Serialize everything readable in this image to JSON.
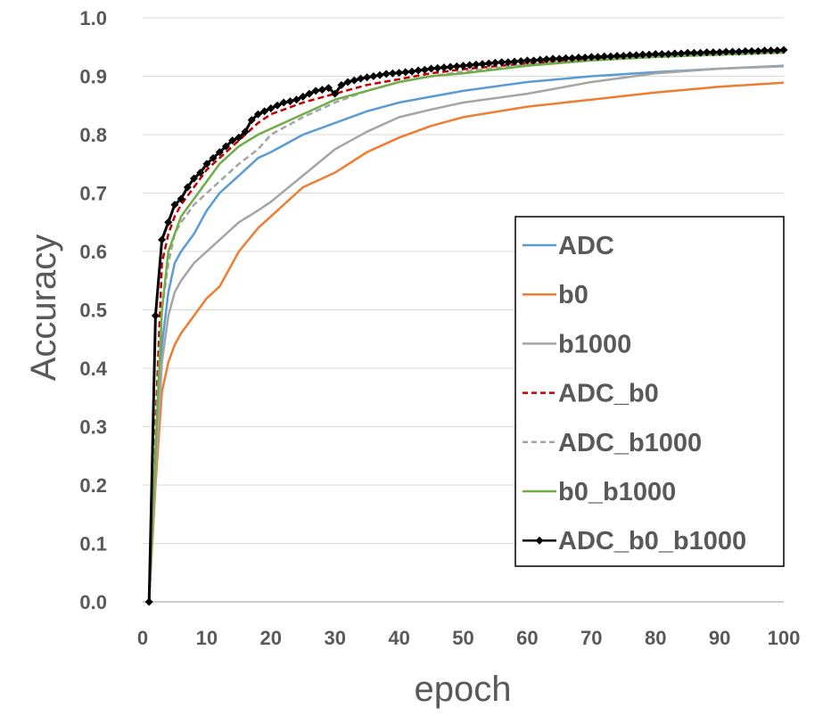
{
  "chart_data": {
    "type": "line",
    "title": "",
    "xlabel": "epoch",
    "ylabel": "Accuracy",
    "xlim": [
      0,
      100
    ],
    "ylim": [
      0.0,
      1.0
    ],
    "x_ticks": [
      "0",
      "10",
      "20",
      "30",
      "40",
      "50",
      "60",
      "70",
      "80",
      "90",
      "100"
    ],
    "y_ticks": [
      "0.0",
      "0.1",
      "0.2",
      "0.3",
      "0.4",
      "0.5",
      "0.6",
      "0.7",
      "0.8",
      "0.9",
      "1.0"
    ],
    "grid": "horizontal",
    "legend_position": "right",
    "series": [
      {
        "name": "ADC",
        "color": "#5b9bd5",
        "dash": "solid",
        "marker": "none",
        "x": [
          2,
          3,
          4,
          5,
          6,
          8,
          10,
          12,
          15,
          18,
          20,
          25,
          30,
          35,
          40,
          45,
          50,
          60,
          70,
          80,
          90,
          100
        ],
        "y": [
          0.25,
          0.44,
          0.53,
          0.58,
          0.6,
          0.63,
          0.67,
          0.7,
          0.73,
          0.76,
          0.77,
          0.8,
          0.82,
          0.84,
          0.855,
          0.865,
          0.875,
          0.89,
          0.9,
          0.907,
          0.913,
          0.918
        ]
      },
      {
        "name": "b0",
        "color": "#ed7d31",
        "dash": "solid",
        "marker": "none",
        "x": [
          2,
          3,
          4,
          5,
          6,
          8,
          10,
          12,
          15,
          18,
          20,
          25,
          30,
          35,
          40,
          45,
          50,
          60,
          70,
          80,
          90,
          100
        ],
        "y": [
          0.2,
          0.36,
          0.41,
          0.44,
          0.46,
          0.49,
          0.52,
          0.54,
          0.6,
          0.64,
          0.66,
          0.71,
          0.735,
          0.77,
          0.795,
          0.815,
          0.83,
          0.848,
          0.86,
          0.872,
          0.882,
          0.889
        ]
      },
      {
        "name": "b1000",
        "color": "#a5a5a5",
        "dash": "solid",
        "marker": "none",
        "x": [
          2,
          3,
          4,
          5,
          6,
          8,
          10,
          12,
          15,
          18,
          20,
          25,
          30,
          35,
          40,
          45,
          50,
          60,
          70,
          80,
          90,
          100
        ],
        "y": [
          0.22,
          0.41,
          0.49,
          0.53,
          0.55,
          0.58,
          0.6,
          0.62,
          0.65,
          0.67,
          0.685,
          0.73,
          0.775,
          0.805,
          0.83,
          0.843,
          0.855,
          0.87,
          0.89,
          0.905,
          0.913,
          0.917
        ]
      },
      {
        "name": "ADC_b0",
        "color": "#c00000",
        "dash": "dashed",
        "marker": "none",
        "x": [
          2,
          3,
          4,
          5,
          6,
          8,
          10,
          12,
          15,
          18,
          20,
          25,
          30,
          35,
          40,
          45,
          50,
          60,
          70,
          80,
          90,
          100
        ],
        "y": [
          0.3,
          0.58,
          0.63,
          0.66,
          0.68,
          0.71,
          0.74,
          0.76,
          0.79,
          0.82,
          0.835,
          0.855,
          0.87,
          0.885,
          0.895,
          0.905,
          0.912,
          0.922,
          0.93,
          0.935,
          0.939,
          0.942
        ]
      },
      {
        "name": "ADC_b1000",
        "color": "#a5a5a5",
        "dash": "dashed",
        "marker": "none",
        "x": [
          2,
          3,
          4,
          5,
          6,
          8,
          10,
          12,
          15,
          18,
          20,
          25,
          30,
          35,
          40,
          45,
          50,
          60,
          70,
          80,
          90,
          100
        ],
        "y": [
          0.28,
          0.5,
          0.58,
          0.63,
          0.65,
          0.68,
          0.7,
          0.72,
          0.75,
          0.775,
          0.8,
          0.83,
          0.855,
          0.875,
          0.89,
          0.9,
          0.908,
          0.92,
          0.928,
          0.933,
          0.937,
          0.94
        ]
      },
      {
        "name": "b0_b1000",
        "color": "#70ad47",
        "dash": "solid",
        "marker": "none",
        "x": [
          2,
          3,
          4,
          5,
          6,
          8,
          10,
          12,
          15,
          18,
          20,
          25,
          30,
          35,
          40,
          45,
          50,
          60,
          70,
          80,
          90,
          100
        ],
        "y": [
          0.26,
          0.5,
          0.6,
          0.63,
          0.66,
          0.69,
          0.72,
          0.75,
          0.78,
          0.8,
          0.81,
          0.835,
          0.86,
          0.875,
          0.89,
          0.9,
          0.905,
          0.918,
          0.927,
          0.933,
          0.937,
          0.941
        ]
      },
      {
        "name": "ADC_b0_b1000",
        "color": "#000000",
        "dash": "solid",
        "marker": "diamond",
        "x": [
          1,
          2,
          3,
          4,
          5,
          6,
          7,
          8,
          9,
          10,
          11,
          12,
          13,
          14,
          15,
          16,
          17,
          18,
          19,
          20,
          21,
          22,
          23,
          24,
          25,
          26,
          27,
          28,
          29,
          30,
          31,
          32,
          33,
          34,
          35,
          36,
          37,
          38,
          39,
          40,
          41,
          42,
          43,
          44,
          45,
          46,
          47,
          48,
          49,
          50,
          51,
          52,
          53,
          54,
          55,
          56,
          57,
          58,
          59,
          60,
          61,
          62,
          63,
          64,
          65,
          66,
          67,
          68,
          69,
          70,
          71,
          72,
          73,
          74,
          75,
          76,
          77,
          78,
          79,
          80,
          81,
          82,
          83,
          84,
          85,
          86,
          87,
          88,
          89,
          90,
          91,
          92,
          93,
          94,
          95,
          96,
          97,
          98,
          99,
          100
        ],
        "y": [
          0.0,
          0.49,
          0.62,
          0.65,
          0.68,
          0.69,
          0.71,
          0.725,
          0.735,
          0.75,
          0.76,
          0.77,
          0.78,
          0.79,
          0.795,
          0.805,
          0.825,
          0.835,
          0.84,
          0.845,
          0.85,
          0.855,
          0.857,
          0.86,
          0.865,
          0.87,
          0.875,
          0.877,
          0.88,
          0.87,
          0.885,
          0.89,
          0.893,
          0.896,
          0.898,
          0.9,
          0.902,
          0.904,
          0.905,
          0.906,
          0.907,
          0.908,
          0.91,
          0.911,
          0.913,
          0.914,
          0.915,
          0.916,
          0.917,
          0.918,
          0.919,
          0.92,
          0.921,
          0.922,
          0.923,
          0.924,
          0.924,
          0.925,
          0.926,
          0.927,
          0.927,
          0.928,
          0.929,
          0.93,
          0.93,
          0.931,
          0.931,
          0.932,
          0.932,
          0.933,
          0.933,
          0.934,
          0.934,
          0.935,
          0.935,
          0.936,
          0.936,
          0.937,
          0.937,
          0.938,
          0.938,
          0.938,
          0.939,
          0.939,
          0.94,
          0.94,
          0.94,
          0.941,
          0.941,
          0.941,
          0.942,
          0.942,
          0.942,
          0.943,
          0.943,
          0.943,
          0.944,
          0.944,
          0.944,
          0.945
        ]
      }
    ]
  }
}
